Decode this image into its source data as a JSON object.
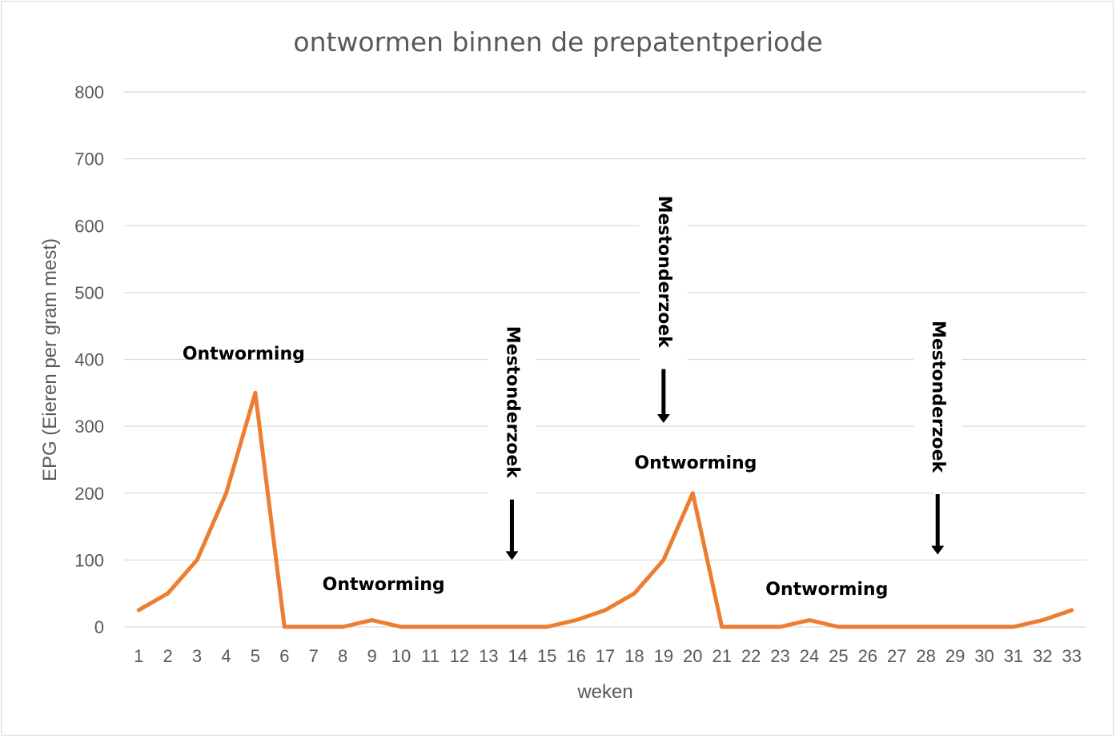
{
  "chart_data": {
    "type": "line",
    "title": "ontwormen binnen de prepatentperiode",
    "xlabel": "weken",
    "ylabel": "EPG (Eieren per gram mest)",
    "x": [
      1,
      2,
      3,
      4,
      5,
      6,
      7,
      8,
      9,
      10,
      11,
      12,
      13,
      14,
      15,
      16,
      17,
      18,
      19,
      20,
      21,
      22,
      23,
      24,
      25,
      26,
      27,
      28,
      29,
      30,
      31,
      32,
      33
    ],
    "series": [
      {
        "values": [
          25,
          50,
          100,
          200,
          350,
          0,
          0,
          0,
          10,
          0,
          0,
          0,
          0,
          0,
          0,
          10,
          25,
          50,
          100,
          200,
          0,
          0,
          0,
          10,
          0,
          0,
          0,
          0,
          0,
          0,
          0,
          10,
          25
        ],
        "color": "#ed7d31"
      }
    ],
    "ylim": [
      0,
      800
    ],
    "yticks": [
      0,
      100,
      200,
      300,
      400,
      500,
      600,
      700,
      800
    ],
    "grid": true,
    "legend": "none",
    "annotations": [
      {
        "text": "Ontworming",
        "x": 4.6,
        "y": 400,
        "style": "horizontal"
      },
      {
        "text": "Ontworming",
        "x": 9.4,
        "y": 55,
        "style": "horizontal"
      },
      {
        "text": "Ontworming",
        "x": 20.1,
        "y": 237,
        "style": "horizontal"
      },
      {
        "text": "Ontworming",
        "x": 24.6,
        "y": 48,
        "style": "horizontal"
      },
      {
        "text": "Mestonderzoek",
        "x": 13.8,
        "y_top": 450,
        "y_arrow_end": 100,
        "style": "vertical-arrow"
      },
      {
        "text": "Mestonderzoek",
        "x": 19.0,
        "y_top": 645,
        "y_arrow_end": 305,
        "style": "vertical-arrow"
      },
      {
        "text": "Mestonderzoek",
        "x": 28.4,
        "y_top": 458,
        "y_arrow_end": 108,
        "style": "vertical-arrow"
      }
    ]
  }
}
